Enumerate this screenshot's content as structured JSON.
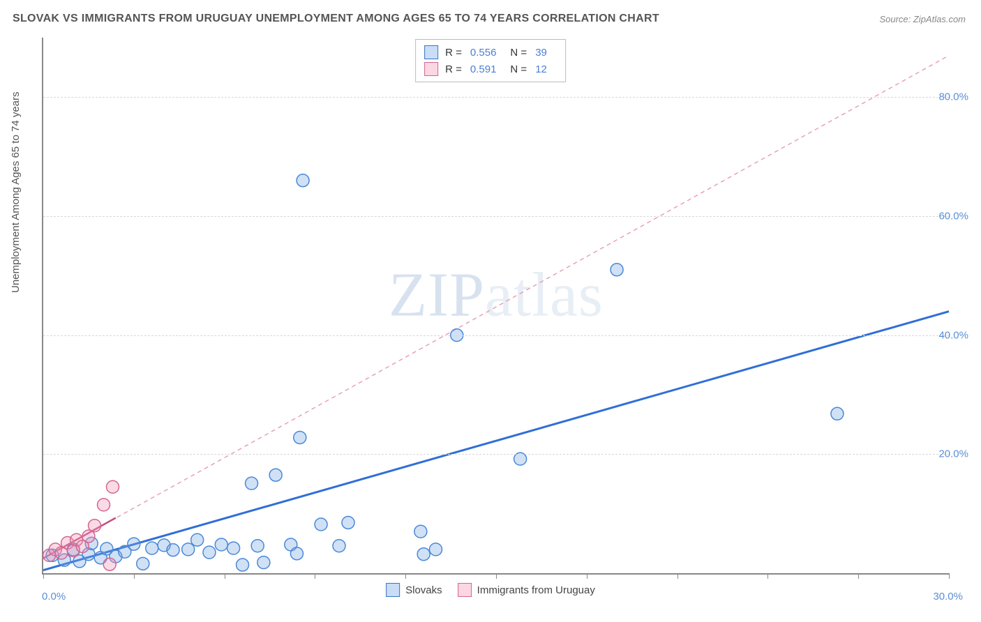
{
  "title": "SLOVAK VS IMMIGRANTS FROM URUGUAY UNEMPLOYMENT AMONG AGES 65 TO 74 YEARS CORRELATION CHART",
  "source": "Source: ZipAtlas.com",
  "watermark": {
    "bold": "ZIP",
    "rest": "atlas"
  },
  "chart": {
    "type": "scatter-with-regression",
    "y_axis_label": "Unemployment Among Ages 65 to 74 years",
    "xlim": [
      0,
      30
    ],
    "ylim": [
      0,
      90
    ],
    "x_tick_step": 3,
    "y_gridlines": [
      20,
      40,
      60,
      80
    ],
    "y_tick_labels": [
      "20.0%",
      "40.0%",
      "60.0%",
      "80.0%"
    ],
    "x_first_label": "0.0%",
    "x_last_label": "30.0%",
    "background_color": "#ffffff",
    "grid_color": "#d8d8d8",
    "axis_color": "#888888",
    "tick_label_color": "#5a8fd6",
    "marker_radius": 9,
    "marker_stroke_width": 1.5,
    "series": {
      "slovaks": {
        "label": "Slovaks",
        "R": "0.556",
        "N": "39",
        "color_fill": "rgba(120,170,230,0.35)",
        "color_stroke": "#4a88d6",
        "points": [
          [
            0.3,
            3.0
          ],
          [
            0.7,
            2.2
          ],
          [
            1.0,
            4.0
          ],
          [
            1.2,
            2.0
          ],
          [
            1.5,
            3.2
          ],
          [
            1.6,
            5.0
          ],
          [
            1.9,
            2.6
          ],
          [
            2.1,
            4.1
          ],
          [
            2.4,
            2.8
          ],
          [
            2.7,
            3.6
          ],
          [
            3.0,
            4.9
          ],
          [
            3.3,
            1.6
          ],
          [
            3.6,
            4.2
          ],
          [
            4.0,
            4.7
          ],
          [
            4.3,
            3.9
          ],
          [
            4.8,
            4.0
          ],
          [
            5.1,
            5.6
          ],
          [
            5.5,
            3.5
          ],
          [
            5.9,
            4.8
          ],
          [
            6.3,
            4.2
          ],
          [
            6.6,
            1.4
          ],
          [
            6.9,
            15.1
          ],
          [
            7.1,
            4.6
          ],
          [
            7.3,
            1.8
          ],
          [
            7.7,
            16.5
          ],
          [
            8.2,
            4.8
          ],
          [
            8.4,
            3.3
          ],
          [
            8.5,
            22.8
          ],
          [
            8.6,
            66.0
          ],
          [
            9.2,
            8.2
          ],
          [
            9.8,
            4.6
          ],
          [
            10.1,
            8.5
          ],
          [
            12.5,
            7.0
          ],
          [
            12.6,
            3.2
          ],
          [
            13.7,
            40.0
          ],
          [
            15.8,
            19.2
          ],
          [
            19.0,
            51.0
          ],
          [
            26.3,
            26.8
          ],
          [
            13.0,
            4.0
          ]
        ],
        "trend": {
          "x1": 0,
          "y1": 0.5,
          "x2": 30,
          "y2": 44.0,
          "stroke": "#2f6fd6",
          "width": 3,
          "dash": "none"
        }
      },
      "uruguay": {
        "label": "Immigrants from Uruguay",
        "R": "0.591",
        "N": "12",
        "color_fill": "rgba(240,150,180,0.35)",
        "color_stroke": "#d26690",
        "points": [
          [
            0.2,
            3.0
          ],
          [
            0.4,
            4.0
          ],
          [
            0.6,
            3.4
          ],
          [
            0.8,
            5.1
          ],
          [
            1.0,
            3.8
          ],
          [
            1.1,
            5.6
          ],
          [
            1.3,
            4.5
          ],
          [
            1.5,
            6.2
          ],
          [
            1.7,
            8.0
          ],
          [
            2.0,
            11.5
          ],
          [
            2.3,
            14.5
          ],
          [
            2.2,
            1.5
          ]
        ],
        "trend": {
          "x1": 0,
          "y1": 2.5,
          "x2": 30,
          "y2": 87.0,
          "stroke": "#e79ab5",
          "width": 1.4,
          "dash": "6,5"
        },
        "trend_solid": {
          "x1": 0,
          "y1": 2.5,
          "x2": 2.4,
          "y2": 9.3,
          "stroke": "#c94f80",
          "width": 2.5,
          "dash": "none"
        }
      }
    }
  },
  "legend_box": {
    "R_label": "R =",
    "N_label": "N ="
  },
  "bottom_legend": {
    "items": [
      {
        "swatch": "blue",
        "label": "Slovaks"
      },
      {
        "swatch": "pink",
        "label": "Immigrants from Uruguay"
      }
    ]
  }
}
